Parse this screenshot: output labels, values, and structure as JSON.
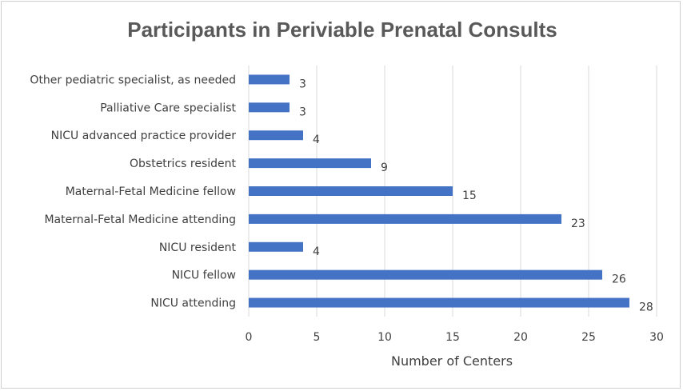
{
  "chart_data": {
    "type": "bar",
    "orientation": "horizontal",
    "title": "Participants in Periviable Prenatal Consults",
    "xlabel": "Number of Centers",
    "ylabel": "",
    "categories": [
      "Other pediatric specialist, as needed",
      "Palliative Care specialist",
      "NICU advanced practice provider",
      "Obstetrics resident",
      "Maternal-Fetal Medicine fellow",
      "Maternal-Fetal Medicine attending",
      "NICU resident",
      "NICU fellow",
      "NICU attending"
    ],
    "values": [
      3,
      3,
      4,
      9,
      15,
      23,
      4,
      26,
      28
    ],
    "xlim": [
      0,
      30
    ],
    "xticks": [
      0,
      5,
      10,
      15,
      20,
      25,
      30
    ],
    "grid": true,
    "legend": "none",
    "bar_color": "#4472c4",
    "grid_color": "#d9d9d9"
  }
}
